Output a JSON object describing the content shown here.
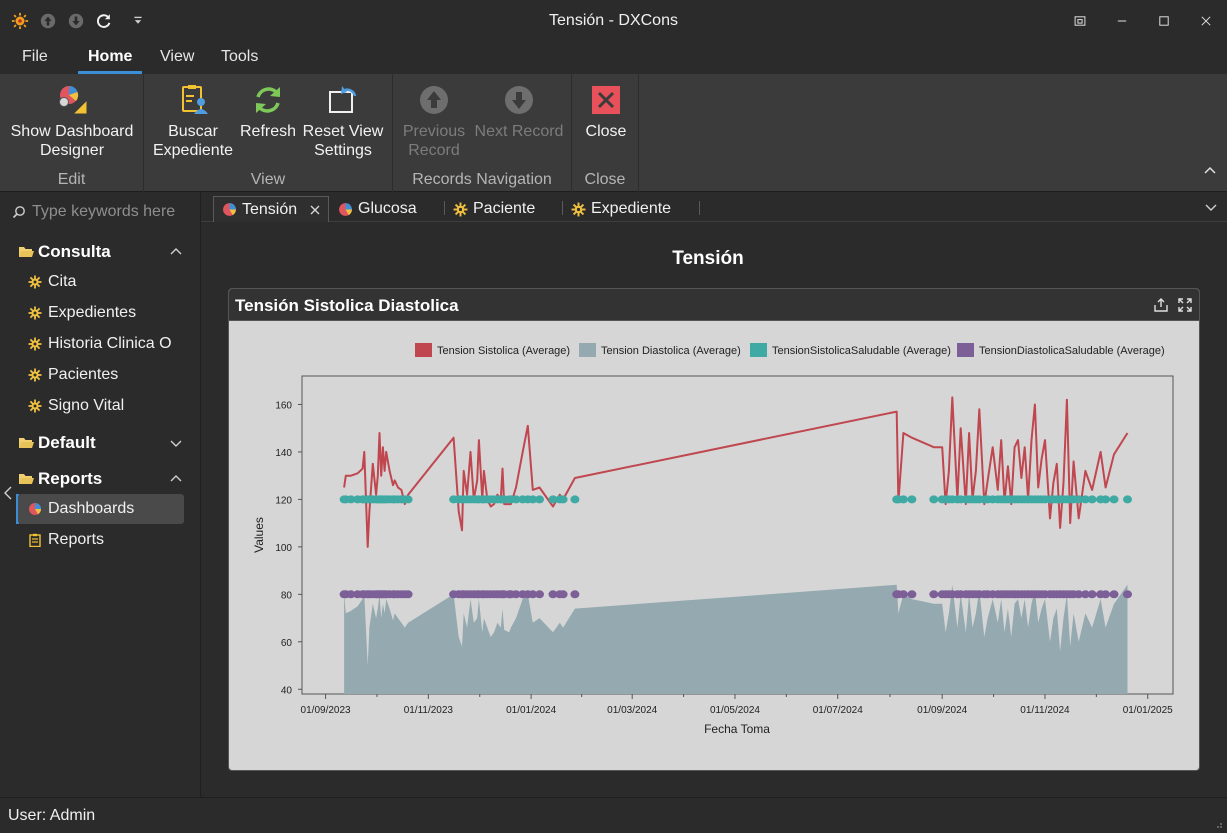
{
  "window": {
    "title": "Tensión - DXCons"
  },
  "menu": {
    "tabs": [
      "File",
      "Home",
      "View",
      "Tools"
    ],
    "active": "Home"
  },
  "ribbon": {
    "groups": {
      "edit": {
        "label": "Edit",
        "show_dashboard_designer": [
          "Show Dashboard",
          "Designer"
        ]
      },
      "view": {
        "label": "View",
        "buscar_expediente": [
          "Buscar",
          "Expediente"
        ],
        "refresh": "Refresh",
        "reset_view_settings": [
          "Reset View",
          "Settings"
        ]
      },
      "records_navigation": {
        "label": "Records Navigation",
        "previous_record": [
          "Previous",
          "Record"
        ],
        "next_record": "Next Record"
      },
      "close": {
        "label": "Close",
        "close": "Close"
      }
    }
  },
  "sidebar": {
    "search_placeholder": "Type keywords here",
    "groups": [
      {
        "label": "Consulta",
        "expanded": true,
        "items": [
          "Cita",
          "Expedientes",
          "Historia Clinica O",
          "Pacientes",
          "Signo Vital"
        ]
      },
      {
        "label": "Default",
        "expanded": false,
        "items": []
      },
      {
        "label": "Reports",
        "expanded": true,
        "items": [
          "Dashboards",
          "Reports"
        ]
      }
    ],
    "selected_item": "Dashboards"
  },
  "doc_tabs": [
    {
      "label": "Tensión",
      "icon": "dashboard-icon",
      "active": true
    },
    {
      "label": "Glucosa",
      "icon": "dashboard-icon",
      "active": false
    },
    {
      "label": "Paciente",
      "icon": "gear-icon",
      "active": false
    },
    {
      "label": "Expediente",
      "icon": "gear-icon",
      "active": false
    }
  ],
  "dashboard": {
    "title": "Tensión",
    "card_title": "Tensión Sistolica Diastolica"
  },
  "colors": {
    "sistolica": "#c0474f",
    "diastolica": "#94aab0",
    "sistolica_saludable": "#3fa9a3",
    "diastolica_saludable": "#7d5f98",
    "accent": "#3c8fd6"
  },
  "chart_data": {
    "type": "line",
    "xlabel": "Fecha Toma",
    "ylabel": "Values",
    "x_ticks": [
      "01/09/2023",
      "01/11/2023",
      "01/01/2024",
      "01/03/2024",
      "01/05/2024",
      "01/07/2024",
      "01/09/2024",
      "01/11/2024",
      "01/01/2025"
    ],
    "y_ticks": [
      40,
      60,
      80,
      100,
      120,
      140,
      160
    ],
    "ylim": [
      38,
      172
    ],
    "legend_position": "top-right",
    "series": [
      {
        "name": "Tension Sistolica (Average)",
        "chart_type": "line",
        "x": [
          "2023-09-12",
          "2023-09-13",
          "2023-09-16",
          "2023-09-20",
          "2023-09-23",
          "2023-09-24",
          "2023-09-26",
          "2023-09-27",
          "2023-09-29",
          "2023-10-01",
          "2023-10-02",
          "2023-10-03",
          "2023-10-04",
          "2023-10-05",
          "2023-10-06",
          "2023-10-07",
          "2023-10-09",
          "2023-10-11",
          "2023-10-12",
          "2023-10-14",
          "2023-10-16",
          "2023-10-18",
          "2023-10-20",
          "2023-11-16",
          "2023-11-19",
          "2023-11-21",
          "2023-11-22",
          "2023-11-24",
          "2023-11-26",
          "2023-11-28",
          "2023-11-30",
          "2023-12-01",
          "2023-12-03",
          "2023-12-04",
          "2023-12-06",
          "2023-12-08",
          "2023-12-10",
          "2023-12-12",
          "2023-12-14",
          "2023-12-15",
          "2023-12-16",
          "2023-12-19",
          "2023-12-20",
          "2023-12-23",
          "2023-12-27",
          "2023-12-30",
          "2024-01-02",
          "2024-01-06",
          "2024-01-14",
          "2024-01-18",
          "2024-01-20",
          "2024-01-27",
          "2024-08-05",
          "2024-08-06",
          "2024-08-09",
          "2024-08-14",
          "2024-08-27",
          "2024-09-01",
          "2024-09-03",
          "2024-09-05",
          "2024-09-07",
          "2024-09-10",
          "2024-09-12",
          "2024-09-15",
          "2024-09-17",
          "2024-09-19",
          "2024-09-21",
          "2024-09-23",
          "2024-09-26",
          "2024-09-28",
          "2024-10-01",
          "2024-10-04",
          "2024-10-06",
          "2024-10-08",
          "2024-10-10",
          "2024-10-12",
          "2024-10-14",
          "2024-10-16",
          "2024-10-18",
          "2024-10-20",
          "2024-10-22",
          "2024-10-24",
          "2024-10-26",
          "2024-10-28",
          "2024-10-30",
          "2024-11-01",
          "2024-11-04",
          "2024-11-06",
          "2024-11-08",
          "2024-11-10",
          "2024-11-12",
          "2024-11-14",
          "2024-11-16",
          "2024-11-18",
          "2024-11-21",
          "2024-11-25",
          "2024-11-29",
          "2024-12-04",
          "2024-12-07",
          "2024-12-12",
          "2024-12-20"
        ],
        "values": [
          125,
          130,
          130,
          131,
          133,
          140,
          100,
          115,
          135,
          122,
          130,
          148,
          130,
          142,
          132,
          140,
          132,
          126,
          128,
          125,
          124,
          118,
          122,
          146,
          115,
          107,
          132,
          122,
          140,
          120,
          128,
          145,
          120,
          132,
          120,
          117,
          118,
          122,
          120,
          133,
          118,
          118,
          118,
          125,
          140,
          151,
          124,
          125,
          117,
          122,
          120,
          129,
          157,
          119,
          148,
          146,
          142,
          142,
          118,
          132,
          163,
          120,
          150,
          118,
          148,
          120,
          132,
          158,
          118,
          128,
          142,
          124,
          145,
          119,
          134,
          118,
          142,
          145,
          129,
          142,
          120,
          145,
          160,
          125,
          137,
          145,
          112,
          127,
          135,
          108,
          127,
          162,
          110,
          136,
          112,
          132,
          124,
          140,
          125,
          139,
          148
        ]
      },
      {
        "name": "Tension Diastolica (Average)",
        "chart_type": "area",
        "x": [
          "2023-09-12",
          "2023-09-13",
          "2023-09-16",
          "2023-09-20",
          "2023-09-23",
          "2023-09-24",
          "2023-09-26",
          "2023-09-27",
          "2023-09-29",
          "2023-10-01",
          "2023-10-02",
          "2023-10-03",
          "2023-10-04",
          "2023-10-05",
          "2023-10-06",
          "2023-10-07",
          "2023-10-09",
          "2023-10-11",
          "2023-10-12",
          "2023-10-14",
          "2023-10-16",
          "2023-10-18",
          "2023-10-20",
          "2023-11-16",
          "2023-11-19",
          "2023-11-21",
          "2023-11-22",
          "2023-11-24",
          "2023-11-26",
          "2023-11-28",
          "2023-11-30",
          "2023-12-01",
          "2023-12-03",
          "2023-12-04",
          "2023-12-06",
          "2023-12-08",
          "2023-12-10",
          "2023-12-12",
          "2023-12-14",
          "2023-12-15",
          "2023-12-16",
          "2023-12-19",
          "2023-12-20",
          "2023-12-23",
          "2023-12-27",
          "2023-12-30",
          "2024-01-02",
          "2024-01-06",
          "2024-01-14",
          "2024-01-18",
          "2024-01-20",
          "2024-01-27",
          "2024-08-05",
          "2024-08-06",
          "2024-08-09",
          "2024-08-14",
          "2024-08-27",
          "2024-09-01",
          "2024-09-03",
          "2024-09-05",
          "2024-09-07",
          "2024-09-10",
          "2024-09-12",
          "2024-09-15",
          "2024-09-17",
          "2024-09-19",
          "2024-09-21",
          "2024-09-23",
          "2024-09-26",
          "2024-09-28",
          "2024-10-01",
          "2024-10-04",
          "2024-10-06",
          "2024-10-08",
          "2024-10-10",
          "2024-10-12",
          "2024-10-14",
          "2024-10-16",
          "2024-10-18",
          "2024-10-20",
          "2024-10-22",
          "2024-10-24",
          "2024-10-26",
          "2024-10-28",
          "2024-10-30",
          "2024-11-01",
          "2024-11-04",
          "2024-11-06",
          "2024-11-08",
          "2024-11-10",
          "2024-11-12",
          "2024-11-14",
          "2024-11-16",
          "2024-11-18",
          "2024-11-21",
          "2024-11-25",
          "2024-11-29",
          "2024-12-04",
          "2024-12-07",
          "2024-12-12",
          "2024-12-20"
        ],
        "values": [
          80,
          72,
          73,
          75,
          78,
          80,
          50,
          66,
          76,
          70,
          74,
          80,
          70,
          76,
          72,
          78,
          74,
          69,
          72,
          70,
          68,
          66,
          68,
          80,
          62,
          58,
          72,
          66,
          78,
          68,
          70,
          78,
          64,
          70,
          66,
          62,
          64,
          68,
          66,
          74,
          65,
          64,
          66,
          70,
          78,
          80,
          68,
          70,
          64,
          68,
          66,
          74,
          84,
          72,
          80,
          78,
          76,
          76,
          64,
          72,
          84,
          66,
          80,
          64,
          80,
          66,
          72,
          82,
          62,
          70,
          78,
          68,
          78,
          64,
          74,
          62,
          76,
          78,
          70,
          78,
          66,
          76,
          82,
          68,
          74,
          78,
          60,
          70,
          74,
          56,
          70,
          80,
          58,
          72,
          60,
          72,
          66,
          78,
          66,
          76,
          84
        ]
      },
      {
        "name": "TensionSistolicaSaludable (Average)",
        "chart_type": "scatter",
        "x": [
          "2023-09-12",
          "2023-09-13",
          "2023-09-16",
          "2023-09-20",
          "2023-09-23",
          "2023-09-24",
          "2023-09-26",
          "2023-09-27",
          "2023-09-29",
          "2023-10-01",
          "2023-10-02",
          "2023-10-03",
          "2023-10-04",
          "2023-10-05",
          "2023-10-06",
          "2023-10-07",
          "2023-10-09",
          "2023-10-11",
          "2023-10-12",
          "2023-10-14",
          "2023-10-16",
          "2023-10-18",
          "2023-10-20",
          "2023-11-16",
          "2023-11-19",
          "2023-11-21",
          "2023-11-22",
          "2023-11-24",
          "2023-11-26",
          "2023-11-28",
          "2023-11-30",
          "2023-12-01",
          "2023-12-03",
          "2023-12-04",
          "2023-12-06",
          "2023-12-08",
          "2023-12-10",
          "2023-12-12",
          "2023-12-14",
          "2023-12-15",
          "2023-12-16",
          "2023-12-19",
          "2023-12-20",
          "2023-12-23",
          "2023-12-27",
          "2023-12-30",
          "2024-01-02",
          "2024-01-06",
          "2024-01-14",
          "2024-01-18",
          "2024-01-20",
          "2024-01-27",
          "2024-08-05",
          "2024-08-06",
          "2024-08-09",
          "2024-08-14",
          "2024-08-27",
          "2024-09-01",
          "2024-09-03",
          "2024-09-05",
          "2024-09-07",
          "2024-09-10",
          "2024-09-12",
          "2024-09-15",
          "2024-09-17",
          "2024-09-19",
          "2024-09-21",
          "2024-09-23",
          "2024-09-26",
          "2024-09-28",
          "2024-10-01",
          "2024-10-04",
          "2024-10-06",
          "2024-10-08",
          "2024-10-10",
          "2024-10-12",
          "2024-10-14",
          "2024-10-16",
          "2024-10-18",
          "2024-10-20",
          "2024-10-22",
          "2024-10-24",
          "2024-10-26",
          "2024-10-28",
          "2024-10-30",
          "2024-11-01",
          "2024-11-04",
          "2024-11-06",
          "2024-11-08",
          "2024-11-10",
          "2024-11-12",
          "2024-11-14",
          "2024-11-16",
          "2024-11-18",
          "2024-11-21",
          "2024-11-25",
          "2024-11-29",
          "2024-12-04",
          "2024-12-07",
          "2024-12-12",
          "2024-12-20"
        ],
        "values": [
          120,
          120,
          120,
          120,
          120,
          120,
          120,
          120,
          120,
          120,
          120,
          120,
          120,
          120,
          120,
          120,
          120,
          120,
          120,
          120,
          120,
          120,
          120,
          120,
          120,
          120,
          120,
          120,
          120,
          120,
          120,
          120,
          120,
          120,
          120,
          120,
          120,
          120,
          120,
          120,
          120,
          120,
          120,
          120,
          120,
          120,
          120,
          120,
          120,
          120,
          120,
          120,
          120,
          120,
          120,
          120,
          120,
          120,
          120,
          120,
          120,
          120,
          120,
          120,
          120,
          120,
          120,
          120,
          120,
          120,
          120,
          120,
          120,
          120,
          120,
          120,
          120,
          120,
          120,
          120,
          120,
          120,
          120,
          120,
          120,
          120,
          120,
          120,
          120,
          120,
          120,
          120,
          120,
          120,
          120,
          120,
          120,
          120,
          120,
          120,
          120
        ]
      },
      {
        "name": "TensionDiastolicaSaludable (Average)",
        "chart_type": "scatter",
        "x": [
          "2023-09-12",
          "2023-09-13",
          "2023-09-16",
          "2023-09-20",
          "2023-09-23",
          "2023-09-24",
          "2023-09-26",
          "2023-09-27",
          "2023-09-29",
          "2023-10-01",
          "2023-10-02",
          "2023-10-03",
          "2023-10-04",
          "2023-10-05",
          "2023-10-06",
          "2023-10-07",
          "2023-10-09",
          "2023-10-11",
          "2023-10-12",
          "2023-10-14",
          "2023-10-16",
          "2023-10-18",
          "2023-10-20",
          "2023-11-16",
          "2023-11-19",
          "2023-11-21",
          "2023-11-22",
          "2023-11-24",
          "2023-11-26",
          "2023-11-28",
          "2023-11-30",
          "2023-12-01",
          "2023-12-03",
          "2023-12-04",
          "2023-12-06",
          "2023-12-08",
          "2023-12-10",
          "2023-12-12",
          "2023-12-14",
          "2023-12-15",
          "2023-12-16",
          "2023-12-19",
          "2023-12-20",
          "2023-12-23",
          "2023-12-27",
          "2023-12-30",
          "2024-01-02",
          "2024-01-06",
          "2024-01-14",
          "2024-01-18",
          "2024-01-20",
          "2024-01-27",
          "2024-08-05",
          "2024-08-06",
          "2024-08-09",
          "2024-08-14",
          "2024-08-27",
          "2024-09-01",
          "2024-09-03",
          "2024-09-05",
          "2024-09-07",
          "2024-09-10",
          "2024-09-12",
          "2024-09-15",
          "2024-09-17",
          "2024-09-19",
          "2024-09-21",
          "2024-09-23",
          "2024-09-26",
          "2024-09-28",
          "2024-10-01",
          "2024-10-04",
          "2024-10-06",
          "2024-10-08",
          "2024-10-10",
          "2024-10-12",
          "2024-10-14",
          "2024-10-16",
          "2024-10-18",
          "2024-10-20",
          "2024-10-22",
          "2024-10-24",
          "2024-10-26",
          "2024-10-28",
          "2024-10-30",
          "2024-11-01",
          "2024-11-04",
          "2024-11-06",
          "2024-11-08",
          "2024-11-10",
          "2024-11-12",
          "2024-11-14",
          "2024-11-16",
          "2024-11-18",
          "2024-11-21",
          "2024-11-25",
          "2024-11-29",
          "2024-12-04",
          "2024-12-07",
          "2024-12-12",
          "2024-12-20"
        ],
        "values": [
          80,
          80,
          80,
          80,
          80,
          80,
          80,
          80,
          80,
          80,
          80,
          80,
          80,
          80,
          80,
          80,
          80,
          80,
          80,
          80,
          80,
          80,
          80,
          80,
          80,
          80,
          80,
          80,
          80,
          80,
          80,
          80,
          80,
          80,
          80,
          80,
          80,
          80,
          80,
          80,
          80,
          80,
          80,
          80,
          80,
          80,
          80,
          80,
          80,
          80,
          80,
          80,
          80,
          80,
          80,
          80,
          80,
          80,
          80,
          80,
          80,
          80,
          80,
          80,
          80,
          80,
          80,
          80,
          80,
          80,
          80,
          80,
          80,
          80,
          80,
          80,
          80,
          80,
          80,
          80,
          80,
          80,
          80,
          80,
          80,
          80,
          80,
          80,
          80,
          80,
          80,
          80,
          80,
          80,
          80,
          80,
          80,
          80,
          80,
          80,
          80
        ]
      }
    ]
  },
  "status": {
    "user": "User: Admin"
  }
}
